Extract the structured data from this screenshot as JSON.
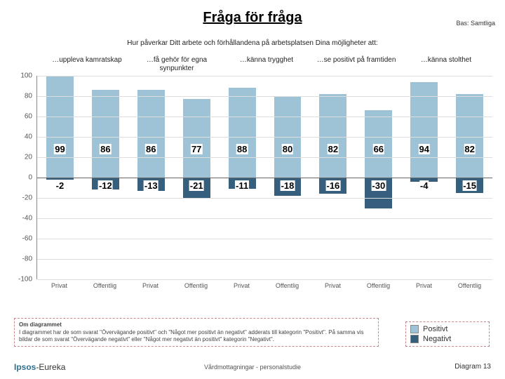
{
  "title": "Fråga för fråga",
  "base_label": "Bas: Samtliga",
  "subtitle": "Hur påverkar Ditt arbete och förhållandena på arbetsplatsen Dina möjligheter att:",
  "groups": [
    "…uppleva kamratskap",
    "…få gehör för egna synpunkter",
    "…känna trygghet",
    "…se positivt på framtiden",
    "…känna stolthet"
  ],
  "chart": {
    "type": "bar",
    "ylim": [
      -100,
      100
    ],
    "ytick_step": 20,
    "grid_color": "#dddddd",
    "axis_color": "#888888",
    "background_color": "#ffffff",
    "categories": [
      "Privat",
      "Offentlig",
      "Privat",
      "Offentlig",
      "Privat",
      "Offentlig",
      "Privat",
      "Offentlig",
      "Privat",
      "Offentlig"
    ],
    "positive": [
      99,
      86,
      86,
      77,
      88,
      80,
      82,
      66,
      94,
      82
    ],
    "negative": [
      -2,
      -12,
      -13,
      -21,
      -11,
      -18,
      -16,
      -30,
      -4,
      -15
    ],
    "positive_color": "#9ec3d6",
    "negative_color": "#355f7d",
    "value_fontsize": 13,
    "label_fontsize": 9
  },
  "legend": {
    "items": [
      {
        "label": "Positivt",
        "color": "#9ec3d6"
      },
      {
        "label": "Negativt",
        "color": "#355f7d"
      }
    ]
  },
  "footnote": {
    "title": "Om diagrammet",
    "body": "I diagrammet har de som svarat \"Övervägande positivt\" och \"Något mer positivt än negativt\" adderats till kategorin \"Positivt\". På samma vis bildar de som svarat \"Övervägande negativt\" eller \"Något mer negativt än positivt\" kategorin \"Negativt\"."
  },
  "logo_a": "Ipsos",
  "logo_b": "-Eureka",
  "footer_center": "Vårdmottagningar - personalstudie",
  "footer_right": "Diagram 13"
}
